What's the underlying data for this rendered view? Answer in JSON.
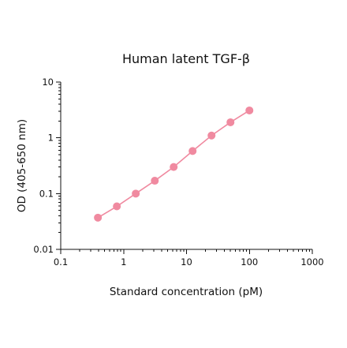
{
  "chart_data": {
    "type": "scatter",
    "title": "Human latent TGF-β",
    "xlabel": "Standard concentration (pM)",
    "ylabel": "OD (405-650 nm)",
    "xscale": "log",
    "yscale": "log",
    "xlim": [
      0.1,
      1000
    ],
    "ylim": [
      0.01,
      10
    ],
    "x_ticks": [
      0.1,
      1,
      10,
      100,
      1000
    ],
    "x_tick_labels": [
      "0.1",
      "1",
      "10",
      "100",
      "1000"
    ],
    "y_ticks": [
      0.01,
      0.1,
      1,
      10
    ],
    "y_tick_labels": [
      "0.01",
      "0.1",
      "1",
      "10"
    ],
    "grid": false,
    "legend": "none",
    "series": [
      {
        "color": "#f08aa0",
        "connected": true,
        "x": [
          0.39,
          0.78,
          1.56,
          3.13,
          6.25,
          12.5,
          25,
          50,
          100
        ],
        "y": [
          0.037,
          0.059,
          0.1,
          0.17,
          0.3,
          0.58,
          1.1,
          1.9,
          3.1
        ]
      }
    ]
  }
}
